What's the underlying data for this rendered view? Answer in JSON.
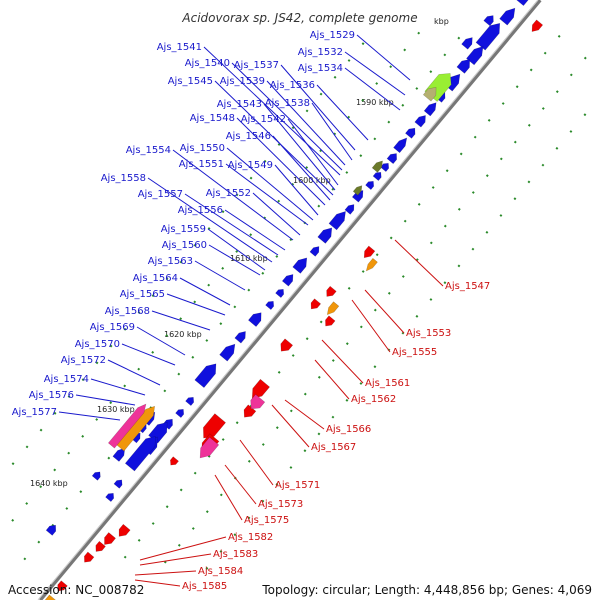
{
  "title": "Acidovorax sp. JS42, complete genome",
  "footer": {
    "accession": "Accession: NC_008782",
    "summary": "Topology: circular; Length: 4,448,856 bp; Genes: 4,069"
  },
  "colors": {
    "forward_gene": "#1010dd",
    "reverse_gene": "#ee0000",
    "backbone": "#888888",
    "tick": "#2a8a2a",
    "rrna_orange": "#f0960a",
    "rna_magenta": "#ee3399",
    "lime": "#99ee33",
    "olive": "#6b7a2a",
    "tan": "#b5b070"
  },
  "kbp_marks": [
    {
      "label": "kbp"
    },
    {
      "label": "1590 kbp"
    },
    {
      "label": "1600 kbp"
    },
    {
      "label": "1610 kbp"
    },
    {
      "label": "1620 kbp"
    },
    {
      "label": "1630 kbp"
    },
    {
      "label": "1640 kbp"
    }
  ],
  "forward_labels": [
    "Ajs_1529",
    "Ajs_1532",
    "Ajs_1534",
    "Ajs_1536",
    "Ajs_1537",
    "Ajs_1538",
    "Ajs_1539",
    "Ajs_1540",
    "Ajs_1541",
    "Ajs_1542",
    "Ajs_1543",
    "Ajs_1545",
    "Ajs_1546",
    "Ajs_1548",
    "Ajs_1549",
    "Ajs_1550",
    "Ajs_1551",
    "Ajs_1552",
    "Ajs_1554",
    "Ajs_1556",
    "Ajs_1557",
    "Ajs_1558",
    "Ajs_1559",
    "Ajs_1560",
    "Ajs_1563",
    "Ajs_1564",
    "Ajs_1565",
    "Ajs_1568",
    "Ajs_1569",
    "Ajs_1570",
    "Ajs_1572",
    "Ajs_1574",
    "Ajs_1576",
    "Ajs_1577"
  ],
  "reverse_labels": [
    "Ajs_1547",
    "Ajs_1553",
    "Ajs_1555",
    "Ajs_1561",
    "Ajs_1562",
    "Ajs_1566",
    "Ajs_1567",
    "Ajs_1571",
    "Ajs_1573",
    "Ajs_1575",
    "Ajs_1582",
    "Ajs_1583",
    "Ajs_1584",
    "Ajs_1585"
  ]
}
